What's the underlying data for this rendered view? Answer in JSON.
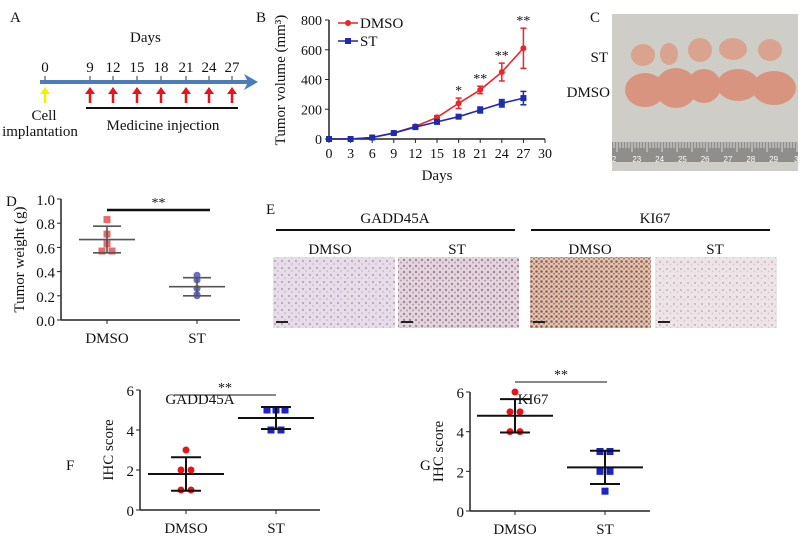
{
  "panel_labels": {
    "a": "A",
    "b": "B",
    "c": "C",
    "d": "D",
    "e": "E",
    "f": "F",
    "g": "G"
  },
  "timeline": {
    "title": "Days",
    "days": [
      "0",
      "9",
      "12",
      "15",
      "18",
      "21",
      "24",
      "27"
    ],
    "start_label_1": "Cell",
    "start_label_2": "implantation",
    "injection_label": "Medicine injection",
    "arrow_color": "#4a7ebb",
    "implant_color": "#f2f200",
    "injection_color": "#e8141b"
  },
  "photo": {
    "row_labels": [
      "ST",
      "DMSO"
    ],
    "ruler_numbers": [
      "2",
      "23",
      "24",
      "25",
      "26",
      "27",
      "28",
      "29",
      "3"
    ]
  },
  "ihc_images": {
    "groups": [
      {
        "marker": "GADD45A",
        "conditions": [
          "DMSO",
          "ST"
        ]
      },
      {
        "marker": "KI67",
        "conditions": [
          "DMSO",
          "ST"
        ]
      }
    ]
  },
  "chart_data": [
    {
      "panel": "B",
      "type": "line",
      "xlabel": "Days",
      "ylabel": "Tumor volume (mm³)",
      "xlim": [
        0,
        30
      ],
      "ylim": [
        0,
        800
      ],
      "xticks": [
        "0",
        "3",
        "6",
        "9",
        "12",
        "15",
        "18",
        "21",
        "24",
        "27",
        "30"
      ],
      "yticks": [
        "0",
        "200",
        "400",
        "600",
        "800"
      ],
      "legend": "top-left",
      "series": [
        {
          "name": "DMSO",
          "color": "#e8262b",
          "marker": "circle",
          "x": [
            0,
            3,
            6,
            9,
            12,
            15,
            18,
            21,
            24,
            27
          ],
          "y": [
            0,
            0,
            10,
            40,
            85,
            145,
            240,
            330,
            450,
            610
          ],
          "err": [
            0,
            0,
            3,
            5,
            8,
            12,
            35,
            25,
            60,
            135
          ]
        },
        {
          "name": "ST",
          "color": "#1d2bb0",
          "marker": "square",
          "x": [
            0,
            3,
            6,
            9,
            12,
            15,
            18,
            21,
            24,
            27
          ],
          "y": [
            0,
            0,
            10,
            40,
            80,
            115,
            150,
            195,
            240,
            275
          ],
          "err": [
            0,
            0,
            3,
            5,
            8,
            10,
            12,
            20,
            25,
            45
          ]
        }
      ],
      "annotations": [
        {
          "x": 18,
          "text": "*"
        },
        {
          "x": 21,
          "text": "**"
        },
        {
          "x": 24,
          "text": "**"
        },
        {
          "x": 27,
          "text": "**"
        }
      ]
    },
    {
      "panel": "D",
      "type": "scatter",
      "ylabel": "Tumor weight (g)",
      "categories": [
        "DMSO",
        "ST"
      ],
      "ylim": [
        0,
        1.0
      ],
      "yticks": [
        "0.0",
        "0.2",
        "0.4",
        "0.6",
        "0.8",
        "1.0"
      ],
      "groups": [
        {
          "name": "DMSO",
          "color": "#e96a6a",
          "marker": "square",
          "values": [
            0.83,
            0.71,
            0.63,
            0.57,
            0.57
          ],
          "mean": 0.665,
          "sd": 0.11
        },
        {
          "name": "ST",
          "color": "#6b6bc9",
          "marker": "circle",
          "values": [
            0.37,
            0.33,
            0.26,
            0.21,
            0.2
          ],
          "mean": 0.275,
          "sd": 0.075
        }
      ],
      "significance": "**"
    },
    {
      "panel": "F",
      "type": "scatter",
      "title": "GADD45A",
      "ylabel": "IHC score",
      "categories": [
        "DMSO",
        "ST"
      ],
      "ylim": [
        0,
        6
      ],
      "yticks": [
        "0",
        "2",
        "4",
        "6"
      ],
      "groups": [
        {
          "name": "DMSO",
          "color": "#e8141b",
          "marker": "circle",
          "values": [
            3,
            2,
            2,
            1,
            1
          ],
          "mean": 1.8,
          "sd": 0.84
        },
        {
          "name": "ST",
          "color": "#1a22c8",
          "marker": "square",
          "values": [
            5,
            5,
            5,
            4,
            4
          ],
          "mean": 4.6,
          "sd": 0.55
        }
      ],
      "significance": "**"
    },
    {
      "panel": "G",
      "type": "scatter",
      "title": "KI67",
      "ylabel": "IHC score",
      "categories": [
        "DMSO",
        "ST"
      ],
      "ylim": [
        0,
        6
      ],
      "yticks": [
        "0",
        "2",
        "4",
        "6"
      ],
      "groups": [
        {
          "name": "DMSO",
          "color": "#e8141b",
          "marker": "circle",
          "values": [
            6,
            5,
            5,
            4,
            4
          ],
          "mean": 4.8,
          "sd": 0.84
        },
        {
          "name": "ST",
          "color": "#1a22c8",
          "marker": "square",
          "values": [
            3,
            3,
            2,
            2,
            1
          ],
          "mean": 2.2,
          "sd": 0.84
        }
      ],
      "significance": "**"
    }
  ]
}
